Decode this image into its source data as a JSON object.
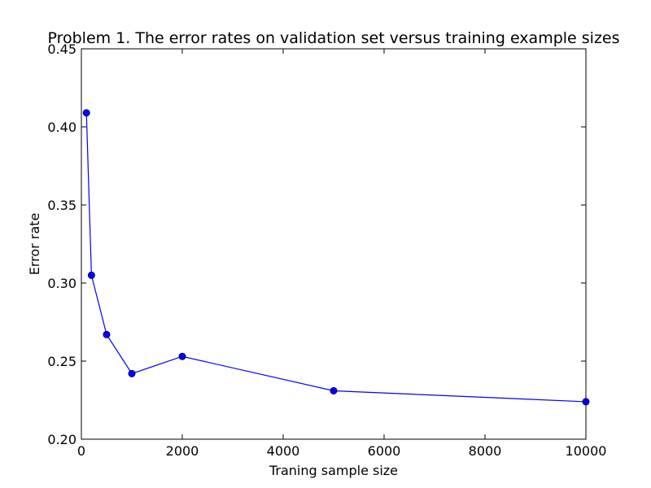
{
  "chart_data": {
    "type": "line",
    "title": "Problem 1. The error rates on validation set versus training example sizes",
    "xlabel": "Traning sample size",
    "ylabel": "Error rate",
    "xlim": [
      0,
      10000
    ],
    "ylim": [
      0.2,
      0.45
    ],
    "xticks": [
      0,
      2000,
      4000,
      6000,
      8000,
      10000
    ],
    "xtick_labels": [
      "0",
      "2000",
      "4000",
      "6000",
      "8000",
      "10000"
    ],
    "yticks": [
      0.2,
      0.25,
      0.3,
      0.35,
      0.4,
      0.45
    ],
    "ytick_labels": [
      "0.20",
      "0.25",
      "0.30",
      "0.35",
      "0.40",
      "0.45"
    ],
    "grid": false,
    "legend": "none",
    "series": [
      {
        "color": "#0000ff",
        "marker": "circle",
        "x": [
          100,
          200,
          500,
          1000,
          2000,
          5000,
          10000
        ],
        "y": [
          0.409,
          0.305,
          0.267,
          0.242,
          0.253,
          0.231,
          0.224
        ]
      }
    ]
  }
}
